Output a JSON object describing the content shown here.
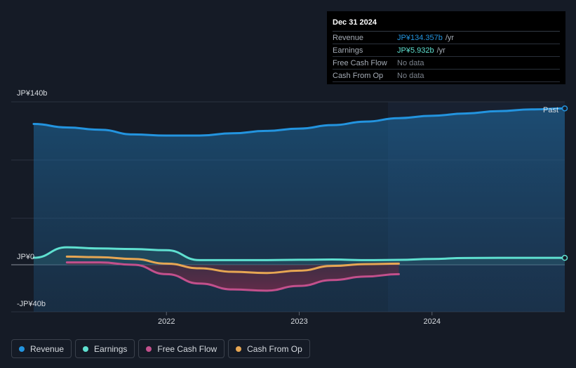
{
  "chart_data": {
    "type": "area",
    "title": "",
    "y_labels": {
      "top": "JP¥140b",
      "zero": "JP¥0",
      "bottom": "-JP¥40b"
    },
    "ylim": [
      -40,
      140
    ],
    "x_ticks": [
      "2022",
      "2023",
      "2024"
    ],
    "past_label": "Past",
    "series": [
      {
        "name": "Revenue",
        "color": "#2394df",
        "x": [
          2021.0,
          2021.25,
          2021.5,
          2021.75,
          2022.0,
          2022.25,
          2022.5,
          2022.75,
          2023.0,
          2023.25,
          2023.5,
          2023.75,
          2024.0,
          2024.25,
          2024.5,
          2024.75,
          2025.0
        ],
        "values": [
          121,
          118,
          116,
          112,
          111,
          111,
          113,
          115,
          117,
          120,
          123,
          126,
          128,
          130,
          132,
          133.5,
          134.357
        ]
      },
      {
        "name": "Earnings",
        "color": "#5fe0d0",
        "x": [
          2021.0,
          2021.25,
          2021.5,
          2021.75,
          2022.0,
          2022.25,
          2022.5,
          2022.75,
          2023.0,
          2023.25,
          2023.5,
          2023.75,
          2024.0,
          2024.25,
          2024.5,
          2024.75,
          2025.0
        ],
        "values": [
          6,
          15,
          14,
          13.5,
          12.5,
          4,
          4,
          4,
          4.3,
          4.5,
          4,
          4.2,
          5,
          5.8,
          5.932,
          5.932,
          5.932
        ]
      },
      {
        "name": "Free Cash Flow",
        "color": "#c2508c",
        "x": [
          2021.25,
          2021.5,
          2021.75,
          2022.0,
          2022.25,
          2022.5,
          2022.75,
          2023.0,
          2023.25,
          2023.5,
          2023.75
        ],
        "values": [
          2,
          2,
          0,
          -8,
          -16,
          -21,
          -22,
          -18,
          -13,
          -10,
          -8
        ]
      },
      {
        "name": "Cash From Op",
        "color": "#e6a653",
        "x": [
          2021.25,
          2021.5,
          2021.75,
          2022.0,
          2022.25,
          2022.5,
          2022.75,
          2023.0,
          2023.25,
          2023.5,
          2023.75
        ],
        "values": [
          7,
          6.5,
          5,
          1,
          -3,
          -6,
          -7,
          -5,
          -1,
          0.5,
          1
        ]
      }
    ]
  },
  "tooltip": {
    "date": "Dec 31 2024",
    "rows": [
      {
        "label": "Revenue",
        "value": "JP¥134.357b",
        "unit": "/yr",
        "color": "#2394df"
      },
      {
        "label": "Earnings",
        "value": "JP¥5.932b",
        "unit": "/yr",
        "color": "#5fe0d0"
      },
      {
        "label": "Free Cash Flow",
        "value": "No data",
        "unit": "",
        "color": "#7c838d"
      },
      {
        "label": "Cash From Op",
        "value": "No data",
        "unit": "",
        "color": "#7c838d"
      }
    ]
  },
  "legend": [
    {
      "label": "Revenue",
      "color": "#2394df"
    },
    {
      "label": "Earnings",
      "color": "#5fe0d0"
    },
    {
      "label": "Free Cash Flow",
      "color": "#c2508c"
    },
    {
      "label": "Cash From Op",
      "color": "#e6a653"
    }
  ]
}
